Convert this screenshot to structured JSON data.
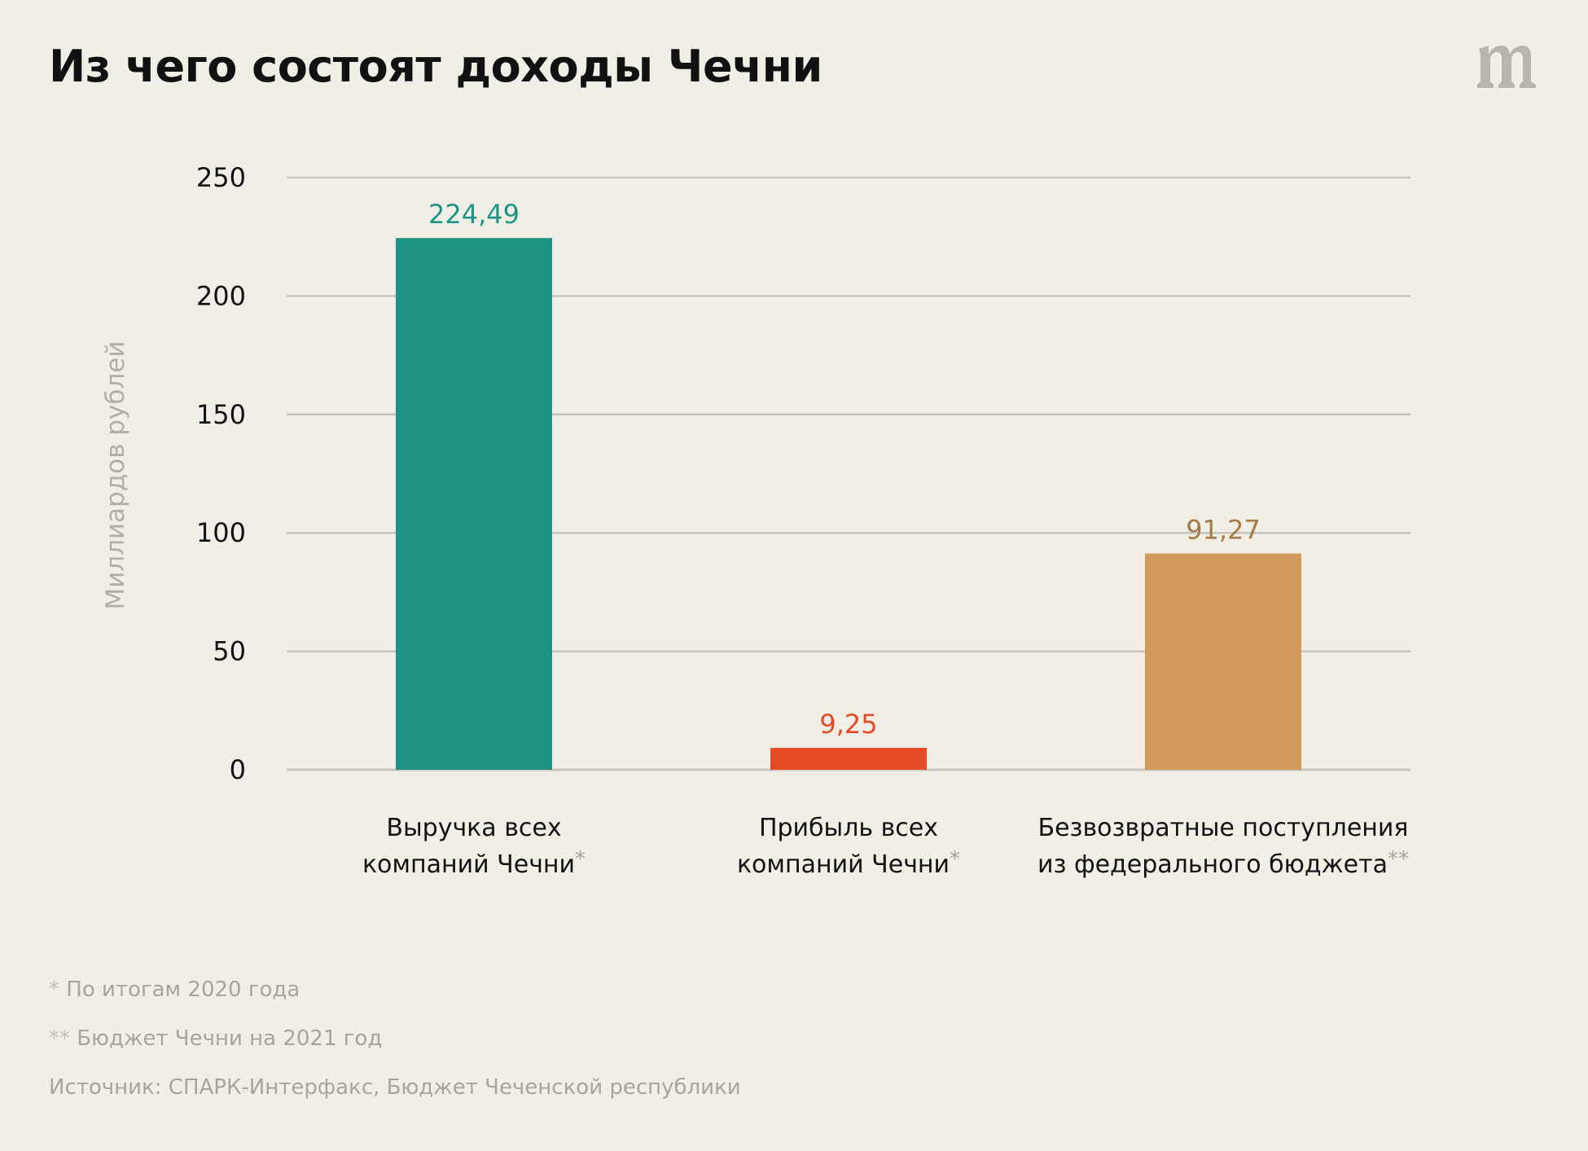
{
  "title": "Из чего состоят доходы Чечни",
  "logo": {
    "name": "meduza-logo",
    "text": "m"
  },
  "colors": {
    "background": "#f1eee6",
    "grid": "#c8c4bc",
    "axis_label": "#b3afa6",
    "text": "#111111"
  },
  "chart_data": {
    "type": "bar",
    "title": "Из чего состоят доходы Чечни",
    "ylabel": "Миллиардов рублей",
    "xlabel": "",
    "ylim": [
      0,
      250
    ],
    "yticks": [
      0,
      50,
      100,
      150,
      200,
      250
    ],
    "grid": true,
    "categories": [
      {
        "lines": [
          "Выручка всех",
          "компаний Чечни"
        ],
        "mark": "*"
      },
      {
        "lines": [
          "Прибыль всех",
          "компаний Чечни"
        ],
        "mark": "*"
      },
      {
        "lines": [
          "Безвозвратные поступления",
          "из федерального бюджета"
        ],
        "mark": "**"
      }
    ],
    "values": [
      224.49,
      9.25,
      91.27
    ],
    "value_labels": [
      "224,49",
      "9,25",
      "91,27"
    ],
    "bar_colors": [
      "#1f9485",
      "#e74b25",
      "#d29a5b"
    ],
    "label_colors": [
      "#1f9485",
      "#e74b25",
      "#a87a45"
    ]
  },
  "notes": [
    {
      "mark": "*",
      "text": "По итогам 2020 года"
    },
    {
      "mark": "**",
      "text": "Бюджет Чечни на 2021 год"
    },
    {
      "mark": "",
      "text": "Источник: СПАРК-Интерфакс, Бюджет Чеченской республики"
    }
  ]
}
